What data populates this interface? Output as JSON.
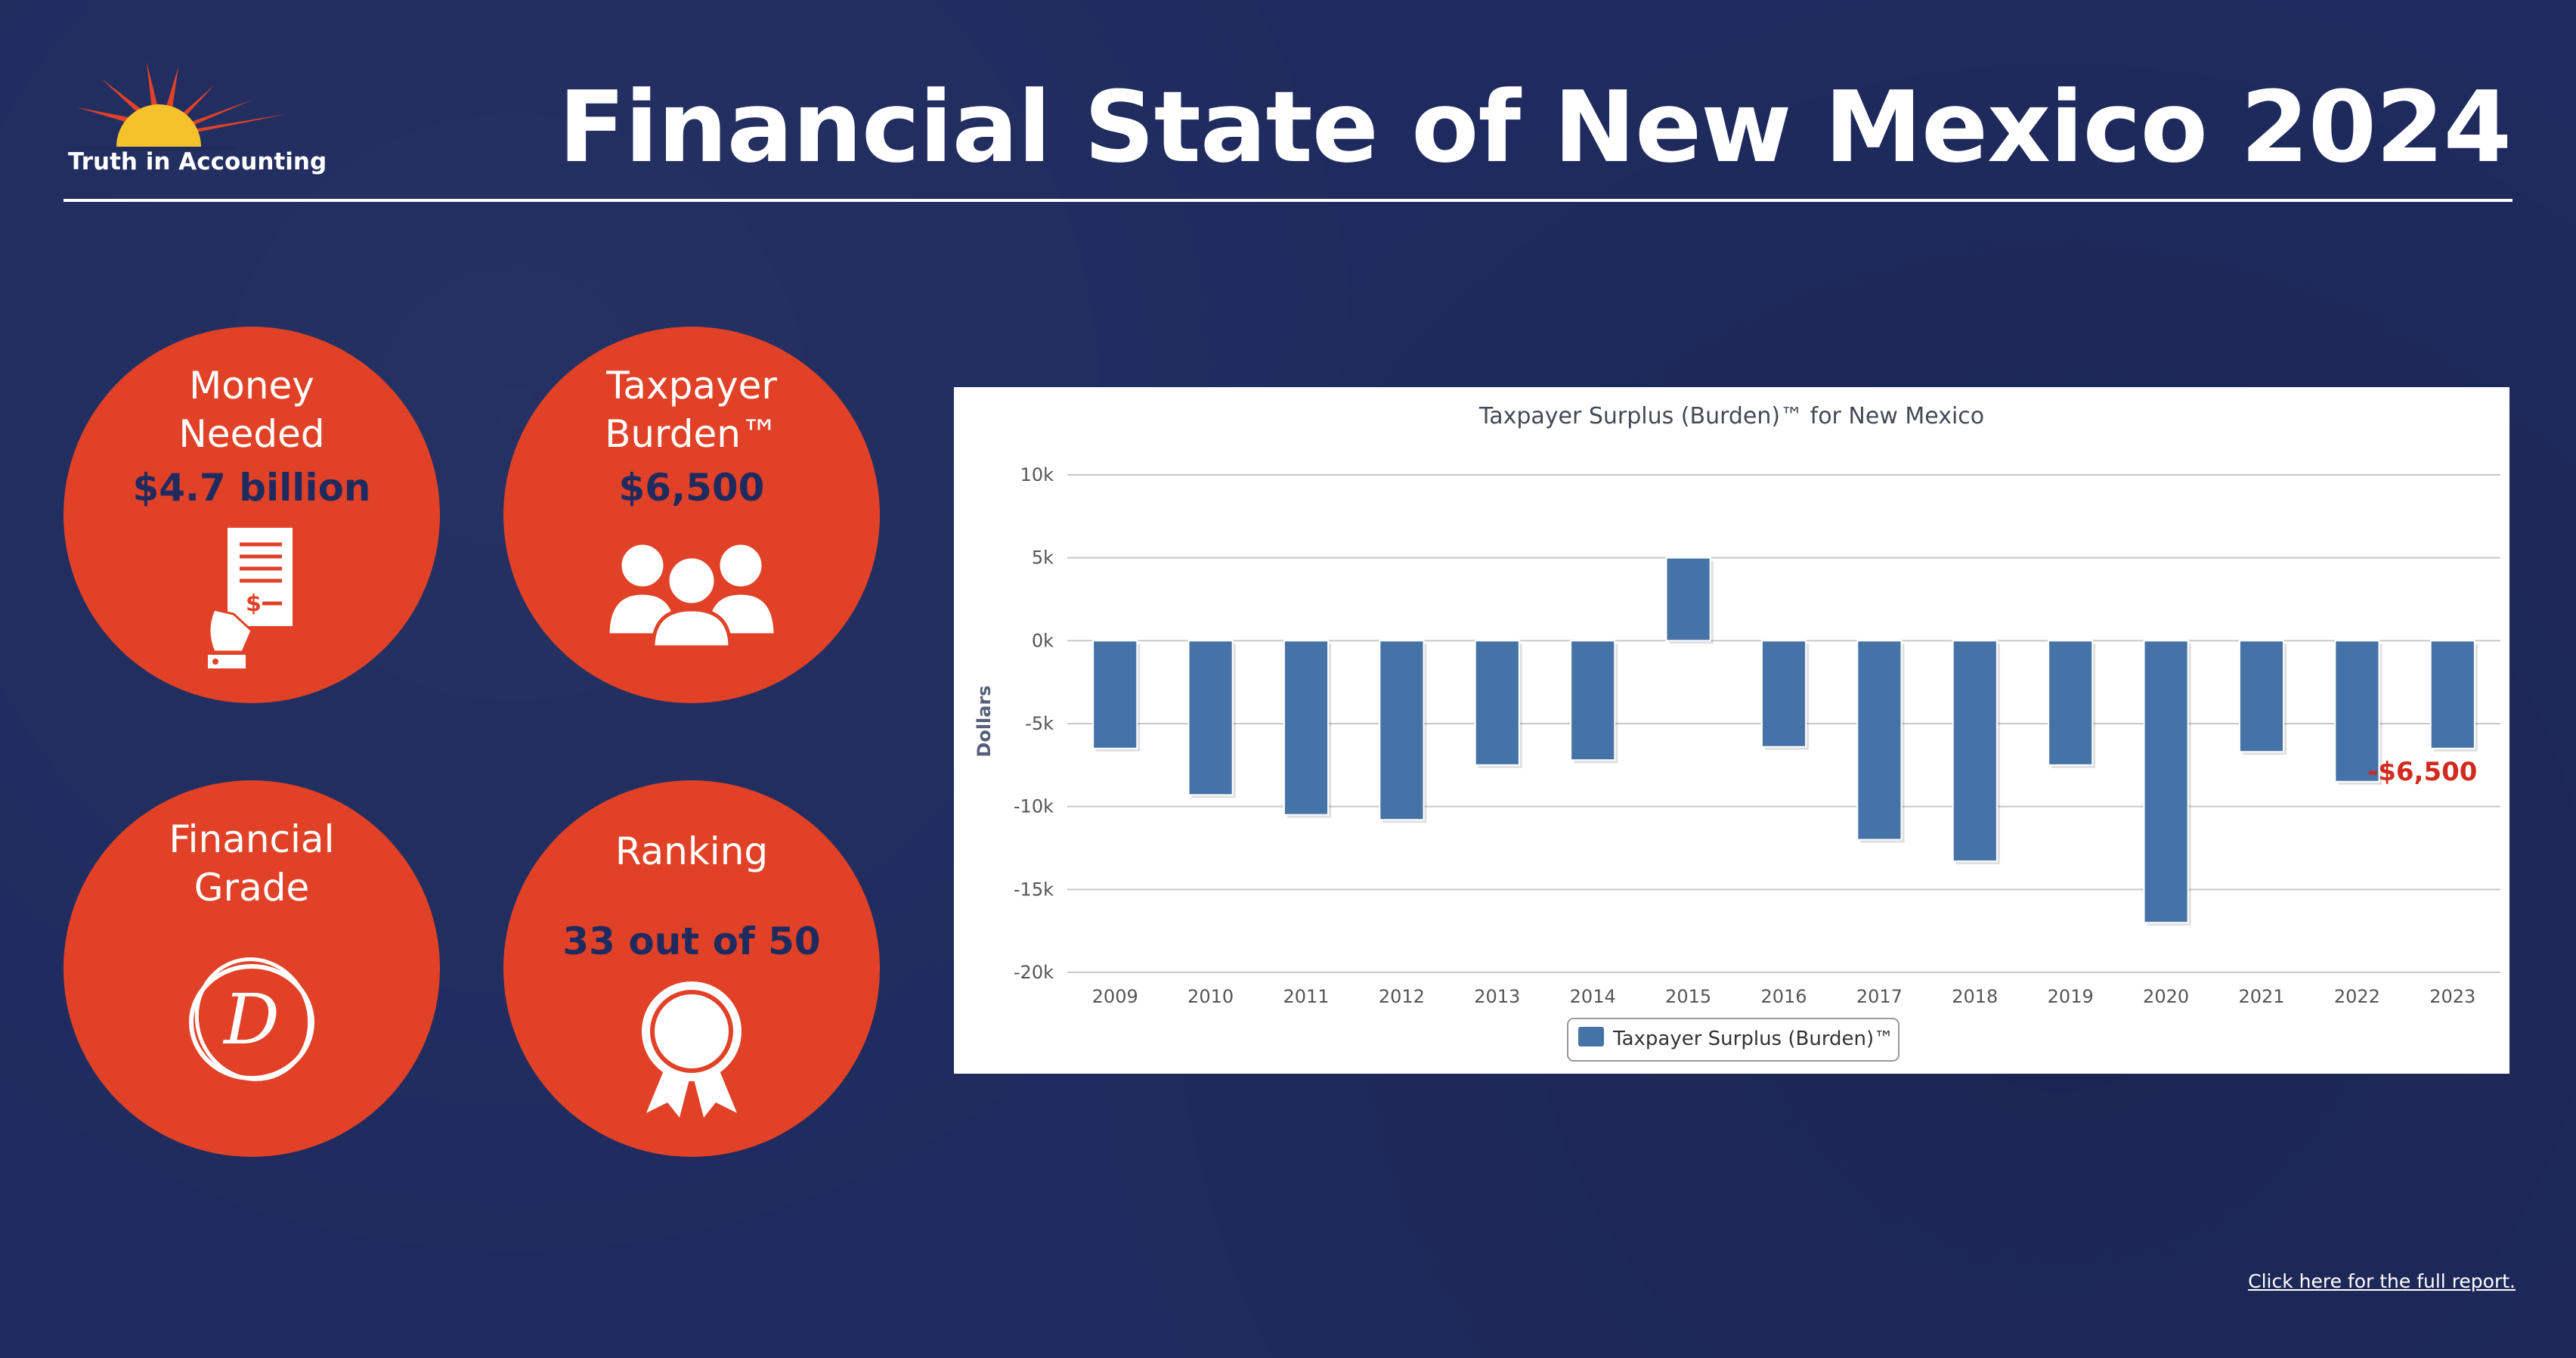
{
  "header": {
    "logo_text": "Truth in Accounting",
    "title": "Financial State of New Mexico 2024"
  },
  "stats": {
    "money_needed": {
      "label_1": "Money",
      "label_2": "Needed",
      "value": "$4.7 billion",
      "icon": "receipt-hand-icon"
    },
    "taxpayer_burden": {
      "label_1": "Taxpayer",
      "label_2": "Burden™",
      "value": "$6,500",
      "icon": "people-group-icon"
    },
    "financial_grade": {
      "label_1": "Financial",
      "label_2": "Grade",
      "grade": "D",
      "icon": "grade-circle-icon"
    },
    "ranking": {
      "label": "Ranking",
      "value": "33 out of 50",
      "icon": "award-ribbon-icon"
    }
  },
  "colors": {
    "background": "#1f2b5e",
    "circle": "#e14227",
    "circle_value_text": "#1f2b5e",
    "bar": "#4572a7",
    "highlight_label": "#d22a1e"
  },
  "chart_data": {
    "type": "bar",
    "title": "Taxpayer Surplus (Burden)™ for New Mexico",
    "xlabel": "",
    "ylabel": "Dollars",
    "categories": [
      "2009",
      "2010",
      "2011",
      "2012",
      "2013",
      "2014",
      "2015",
      "2016",
      "2017",
      "2018",
      "2019",
      "2020",
      "2021",
      "2022",
      "2023"
    ],
    "series": [
      {
        "name": "Taxpayer Surplus (Burden)™",
        "values": [
          -6500,
          -9300,
          -10500,
          -10800,
          -7500,
          -7200,
          5000,
          -6400,
          -12000,
          -13300,
          -7500,
          -17000,
          -6700,
          -8500,
          -6500
        ]
      }
    ],
    "ylim": [
      -20000,
      10000
    ],
    "yticks": [
      10000,
      5000,
      0,
      -5000,
      -10000,
      -15000,
      -20000
    ],
    "ytick_labels": [
      "10k",
      "5k",
      "0k",
      "-5k",
      "-10k",
      "-15k",
      "-20k"
    ],
    "grid": true,
    "legend_position": "bottom-center",
    "annotation": {
      "category": "2023",
      "text": "-$6,500"
    }
  },
  "footer": {
    "link_text": "Click here for the full report."
  }
}
